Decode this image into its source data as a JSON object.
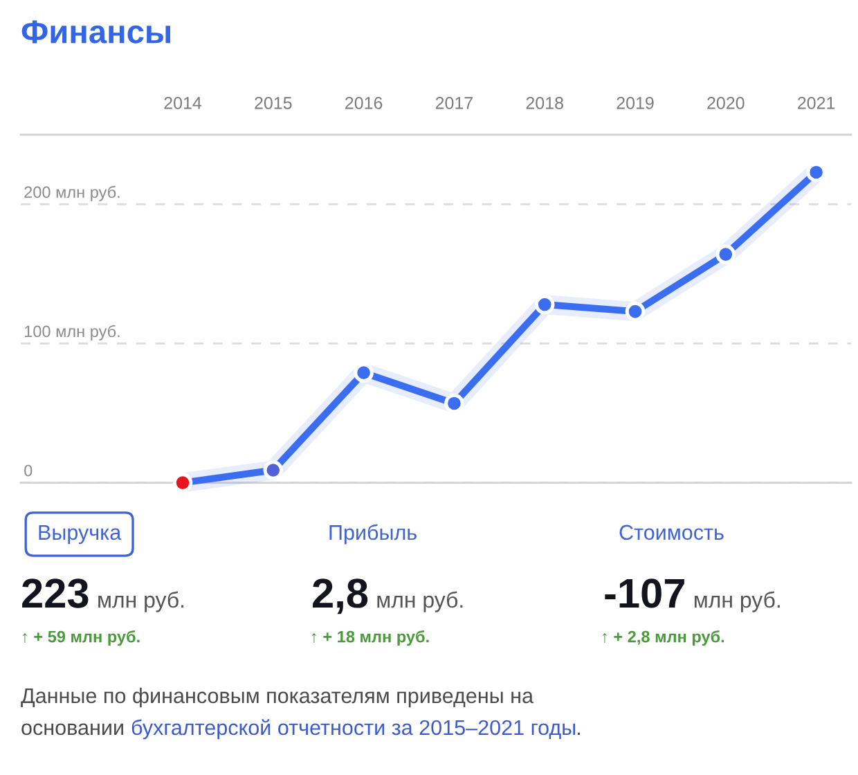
{
  "chart_data": {
    "type": "line",
    "title": "Финансы",
    "categories": [
      "2014",
      "2015",
      "2016",
      "2017",
      "2018",
      "2019",
      "2020",
      "2021"
    ],
    "series": [
      {
        "color": "#3a6df0",
        "colors": [
          "#e8141e",
          "#5460d8",
          "#3a6df0",
          "#3a6df0",
          "#3a6df0",
          "#3a6df0",
          "#3a6df0",
          "#3a6df0"
        ],
        "values": [
          0,
          9,
          79,
          57,
          128,
          123,
          164,
          223
        ]
      }
    ],
    "ylim": [
      0,
      250
    ],
    "yticks": [
      0,
      {
        "value": 100,
        "label": "100 млн руб."
      },
      {
        "value": 200,
        "label": "200 млн руб."
      }
    ],
    "grid": "y",
    "marker": "circle",
    "line_style": "solid",
    "annotations": [
      "Выручка",
      "Прибыль",
      "Стоимость",
      "223",
      "млн руб.",
      "2,8",
      "млн руб.",
      "-107",
      "млн руб.",
      "↑ + 59 млн руб.",
      "↑ + 18 млн руб.",
      "↑ + 2,8 млн руб.",
      "Данные по финансовым показателям приведены на",
      "основании",
      "бухгалтерской отчетности за 2015–2021 годы",
      "."
    ]
  }
}
